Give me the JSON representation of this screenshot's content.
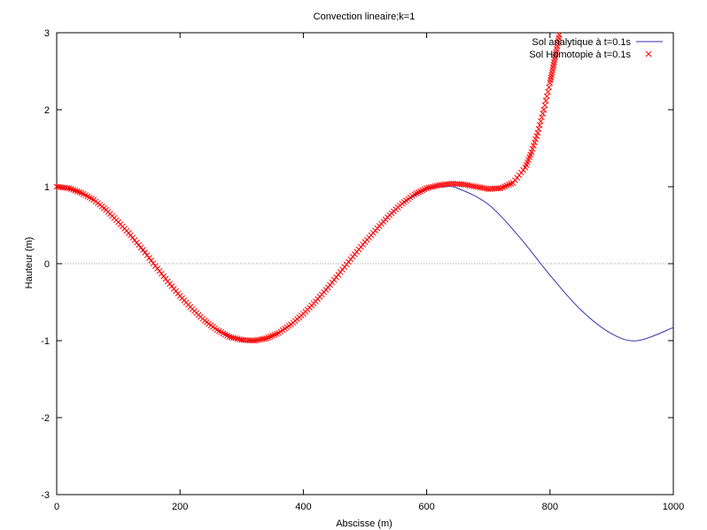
{
  "chart_data": {
    "type": "line",
    "title": "Convection lineaire;k=1",
    "xlabel": "Abscisse (m)",
    "ylabel": "Hauteur (m)",
    "xlim": [
      0,
      1000
    ],
    "ylim": [
      -3,
      3
    ],
    "xticks": [
      0,
      200,
      400,
      600,
      800,
      1000
    ],
    "yticks": [
      -3,
      -2,
      -1,
      0,
      1,
      2,
      3
    ],
    "grid": false,
    "zero_line": true,
    "legend_position": "top-right",
    "series": [
      {
        "name": "Sol analytique à t=0.1s",
        "style": "line",
        "color": "#3333aa",
        "x": [
          0,
          50,
          100,
          150,
          200,
          250,
          300,
          314,
          350,
          400,
          450,
          500,
          550,
          600,
          628,
          650,
          700,
          750,
          800,
          850,
          900,
          942,
          1000
        ],
        "y": [
          1.0,
          0.88,
          0.54,
          0.07,
          -0.42,
          -0.8,
          -0.99,
          -1.0,
          -0.94,
          -0.65,
          -0.21,
          0.28,
          0.71,
          0.96,
          1.0,
          0.98,
          0.77,
          0.35,
          -0.15,
          -0.6,
          -0.91,
          -1.0,
          -0.83
        ]
      },
      {
        "name": "Sol Homotopie à t=0.1s",
        "style": "points",
        "marker": "x",
        "color": "#ff0000",
        "x": [
          0,
          20,
          40,
          60,
          80,
          100,
          120,
          140,
          160,
          180,
          200,
          220,
          240,
          260,
          280,
          300,
          320,
          340,
          360,
          380,
          400,
          420,
          440,
          460,
          480,
          500,
          520,
          540,
          560,
          580,
          600,
          620,
          640,
          660,
          680,
          700,
          720,
          740,
          760,
          770,
          780,
          790,
          800,
          805,
          810,
          815
        ],
        "y": [
          1.0,
          0.98,
          0.92,
          0.83,
          0.7,
          0.54,
          0.37,
          0.18,
          -0.03,
          -0.23,
          -0.42,
          -0.59,
          -0.74,
          -0.86,
          -0.95,
          -0.99,
          -1.0,
          -0.97,
          -0.9,
          -0.79,
          -0.65,
          -0.49,
          -0.31,
          -0.11,
          0.09,
          0.28,
          0.46,
          0.63,
          0.78,
          0.9,
          0.98,
          1.02,
          1.04,
          1.03,
          1.0,
          0.97,
          0.98,
          1.05,
          1.25,
          1.45,
          1.7,
          2.0,
          2.35,
          2.55,
          2.75,
          2.97
        ]
      }
    ]
  }
}
